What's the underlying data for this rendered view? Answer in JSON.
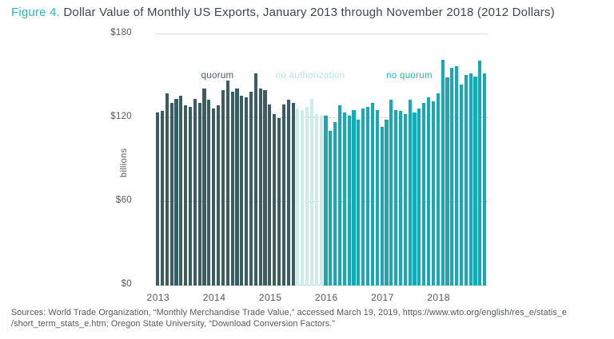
{
  "title": {
    "figure_label": "Figure 4.",
    "text": " Dollar Value of Monthly US Exports, January 2013 through November 2018 (2012 Dollars)"
  },
  "chart_data": {
    "type": "bar",
    "title": "Dollar Value of Monthly US Exports, January 2013 through November 2018 (2012 Dollars)",
    "xlabel": "",
    "ylabel": "billions",
    "ylim": [
      0,
      180
    ],
    "grid": "horizontal-dashed",
    "y_axis": {
      "ticks": [
        {
          "label": "$180",
          "value": 180,
          "line": "solid"
        },
        {
          "label": "$120",
          "value": 120,
          "line": "dashed"
        },
        {
          "label": "$60",
          "value": 60,
          "line": "dashed"
        },
        {
          "label": "$0",
          "value": 0,
          "line": "base"
        }
      ]
    },
    "x_axis": {
      "ticks": [
        {
          "label": "2013",
          "month_index": 0
        },
        {
          "label": "2014",
          "month_index": 12
        },
        {
          "label": "2015",
          "month_index": 24
        },
        {
          "label": "2016",
          "month_index": 36
        },
        {
          "label": "2017",
          "month_index": 48
        },
        {
          "label": "2018",
          "month_index": 60
        }
      ]
    },
    "segments": [
      {
        "name": "quorum",
        "color": "#3a5d62",
        "label_color": "#4c5c60",
        "from_index": 0,
        "to_index": 29
      },
      {
        "name": "no authorization",
        "color": "#cdecea",
        "label_color": "#b7e4e2",
        "from_index": 30,
        "to_index": 35
      },
      {
        "name": "no quorum",
        "color": "#16aab6",
        "label_color": "#2bb3bb",
        "from_index": 36,
        "to_index": 70
      }
    ],
    "annotations": [
      {
        "text": "quorum",
        "x": 77,
        "y": 46,
        "color": "#4c5c60"
      },
      {
        "text": "no authorization",
        "x": 193,
        "y": 46,
        "color": "#b7e4e2"
      },
      {
        "text": "no quorum",
        "x": 317,
        "y": 46,
        "color": "#2bb3bb"
      }
    ],
    "years": [
      "2013",
      "2014",
      "2015",
      "2016",
      "2017",
      "2018"
    ],
    "values_by_year": {
      "2013": [
        124,
        125,
        138,
        131,
        134,
        136,
        129,
        128,
        134,
        131,
        141,
        133
      ],
      "2014": [
        127,
        129,
        140,
        147,
        139,
        141,
        136,
        135,
        139,
        152,
        141,
        140
      ],
      "2015": [
        130,
        123,
        120,
        130,
        133,
        131,
        127,
        126,
        128,
        134,
        123,
        122
      ],
      "2016": [
        122,
        111,
        117,
        129,
        124,
        122,
        126,
        119,
        127,
        128,
        131,
        126
      ],
      "2017": [
        114,
        119,
        133,
        126,
        125,
        123,
        133,
        124,
        127,
        131,
        135,
        132
      ],
      "2018": [
        138,
        162,
        149,
        156,
        157,
        144,
        151,
        152,
        150,
        161,
        152
      ]
    }
  },
  "footer": {
    "line1": "Sources: World Trade Organization, “Monthly Merchandise Trade Value,” accessed March 19, 2019, https://www.wto.org/english/res_e/statis_e",
    "line2": "/short_term_stats_e.htm; Oregon State University, “Download Conversion Factors.”"
  }
}
